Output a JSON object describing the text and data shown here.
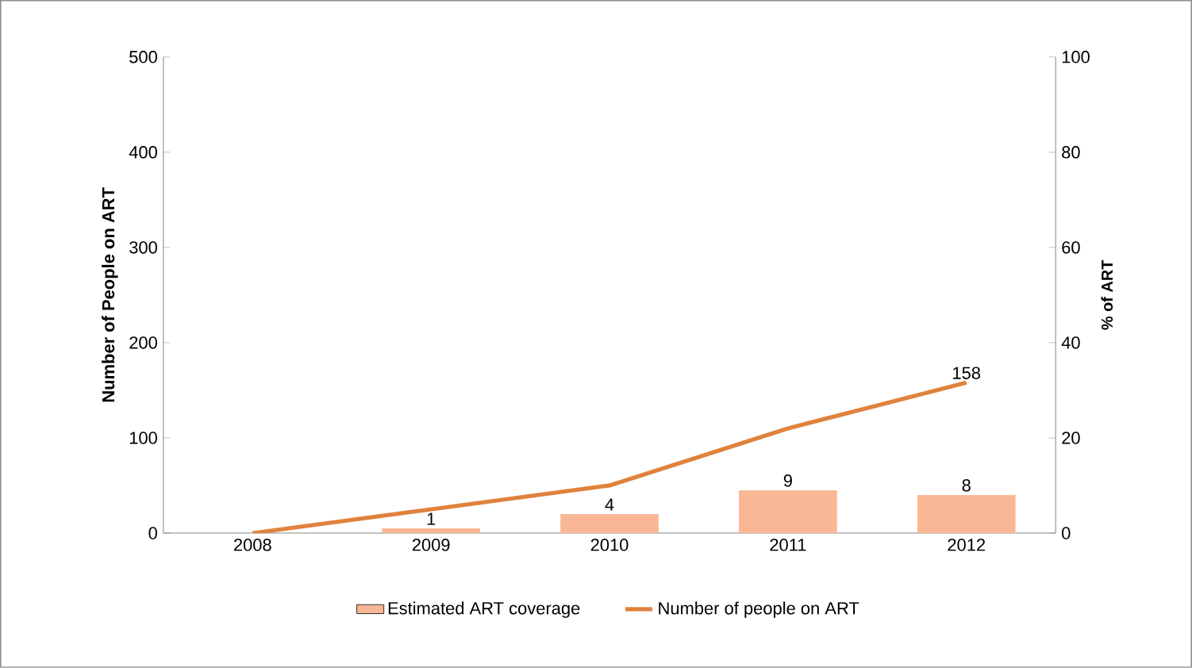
{
  "chart_data": {
    "type": "bar",
    "categories": [
      "2008",
      "2009",
      "2010",
      "2011",
      "2012"
    ],
    "ylabel": "Number of People on ART",
    "y2label": "% of ART",
    "ylim": [
      0,
      500
    ],
    "yticks": [
      0,
      100,
      200,
      300,
      400,
      500
    ],
    "y2lim": [
      0,
      100
    ],
    "y2ticks": [
      0,
      20,
      40,
      60,
      80,
      100
    ],
    "legend": "bottom",
    "grid": false,
    "series": [
      {
        "name": "Estimated ART coverage",
        "axis": "y2",
        "color": "#f9b795",
        "values": [
          null,
          1,
          4,
          9,
          8
        ],
        "value_labels": [
          null,
          "1",
          "4",
          "9",
          "8"
        ]
      },
      {
        "name": "Number of people on ART",
        "type": "line",
        "axis": "y",
        "color": "#e0823d",
        "values": [
          0,
          25,
          50,
          110,
          158
        ],
        "value_labels": [
          null,
          null,
          null,
          null,
          "158"
        ]
      }
    ]
  }
}
